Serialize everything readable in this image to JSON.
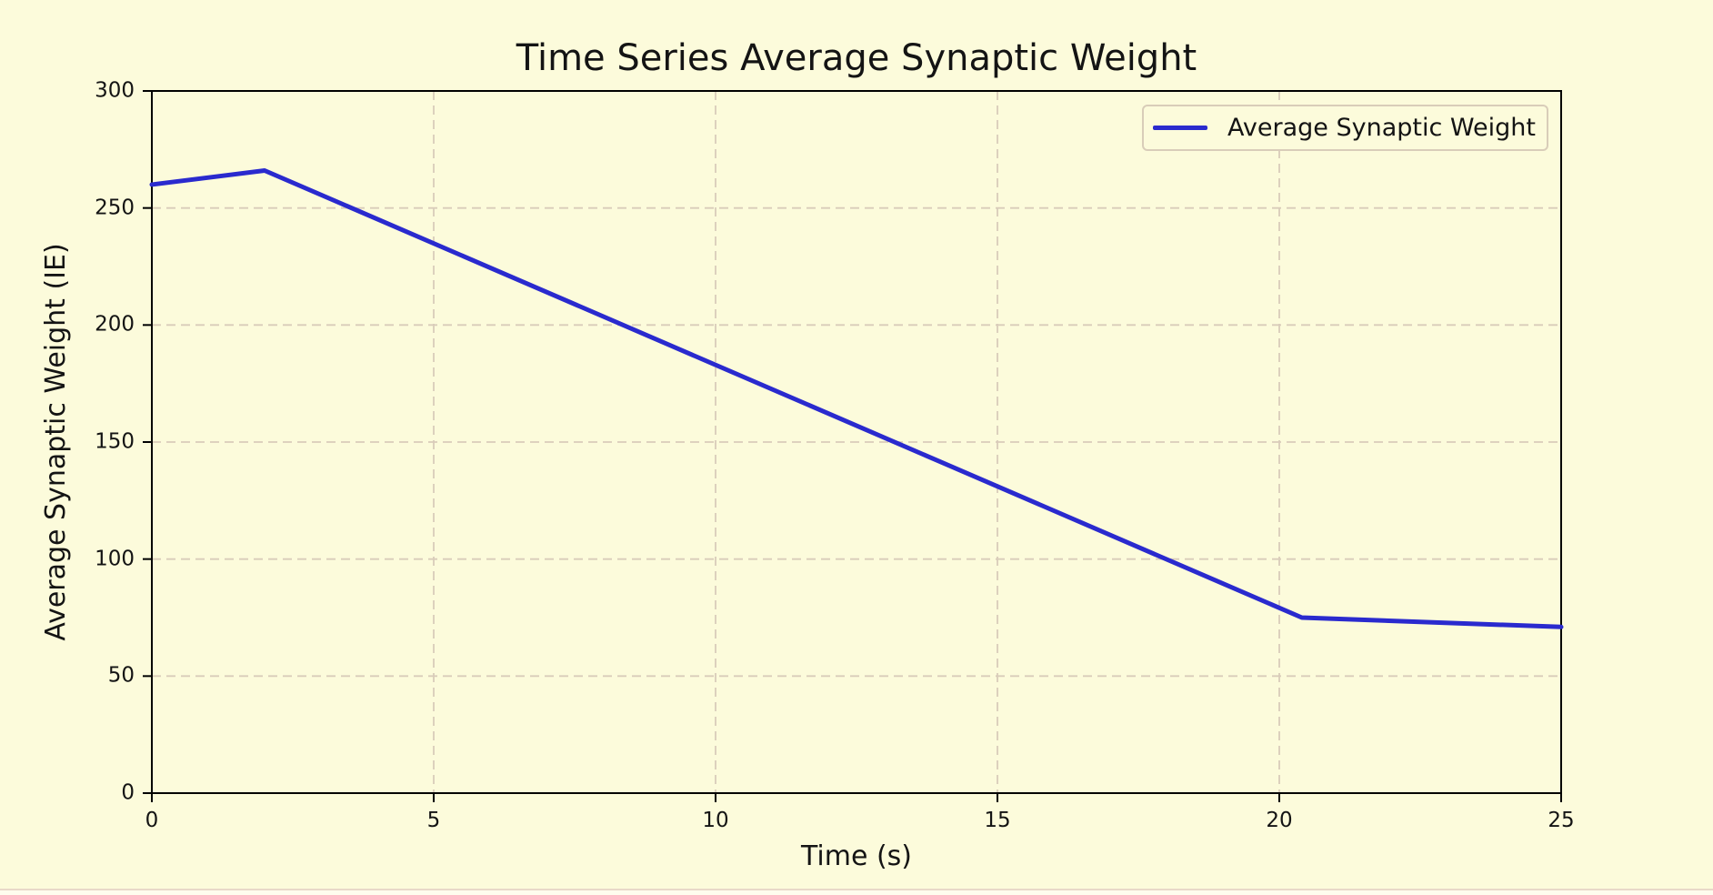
{
  "chart_data": {
    "type": "line",
    "title": "Time Series Average Synaptic Weight",
    "xlabel": "Time (s)",
    "ylabel": "Average Synaptic Weight (IE)",
    "xlim": [
      0,
      25
    ],
    "ylim": [
      0,
      300
    ],
    "xticks": [
      0,
      5,
      10,
      15,
      20,
      25
    ],
    "yticks": [
      0,
      50,
      100,
      150,
      200,
      250,
      300
    ],
    "grid": "dashed",
    "legend_position": "upper right",
    "series": [
      {
        "name": "Average Synaptic Weight",
        "x": [
          0,
          2,
          20.4,
          25
        ],
        "y": [
          260,
          266,
          75,
          71
        ],
        "color": "#2a2ace"
      }
    ]
  },
  "colors": {
    "figure_bg": "#fcfbdb",
    "grid": "#d9ccba",
    "spine": "#000000",
    "text": "#141414",
    "legend_border": "#d9cdb9",
    "footer_bg": "#fefcee",
    "footer_border": "#e9d9c9"
  }
}
